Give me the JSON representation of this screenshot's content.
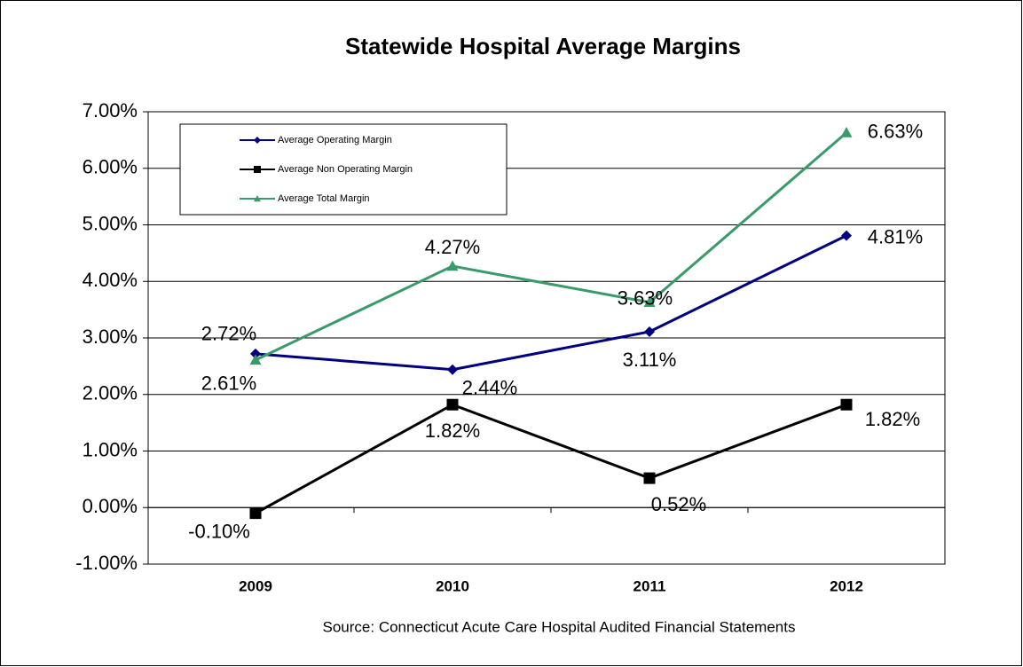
{
  "chart_data": {
    "type": "line",
    "title": "Statewide Hospital Average Margins",
    "source": "Source: Connecticut  Acute Care Hospital Audited Financial Statements",
    "categories": [
      "2009",
      "2010",
      "2011",
      "2012"
    ],
    "ylim": [
      -1,
      7
    ],
    "yticks": [
      {
        "value": -1,
        "label": "-1.00%"
      },
      {
        "value": 0,
        "label": "0.00%"
      },
      {
        "value": 1,
        "label": "1.00%"
      },
      {
        "value": 2,
        "label": "2.00%"
      },
      {
        "value": 3,
        "label": "3.00%"
      },
      {
        "value": 4,
        "label": "4.00%"
      },
      {
        "value": 5,
        "label": "5.00%"
      },
      {
        "value": 6,
        "label": "6.00%"
      },
      {
        "value": 7,
        "label": "7.00%"
      }
    ],
    "grid": true,
    "legend": "top-left",
    "series": [
      {
        "name": "Average Operating Margin",
        "color": "#000080",
        "marker": "diamond",
        "values": [
          2.72,
          2.44,
          3.11,
          4.81
        ],
        "value_labels": [
          "2.72%",
          "2.44%",
          "3.11%",
          "4.81%"
        ]
      },
      {
        "name": "Average Non Operating Margin",
        "color": "#000000",
        "marker": "square",
        "values": [
          -0.1,
          1.82,
          0.52,
          1.82
        ],
        "value_labels": [
          "-0.10%",
          "1.82%",
          "0.52%",
          "1.82%"
        ]
      },
      {
        "name": "Average Total Margin",
        "color": "#3a9a6a",
        "marker": "triangle",
        "values": [
          2.61,
          4.27,
          3.63,
          6.63
        ],
        "value_labels": [
          "2.61%",
          "4.27%",
          "3.63%",
          "6.63%"
        ]
      }
    ]
  }
}
